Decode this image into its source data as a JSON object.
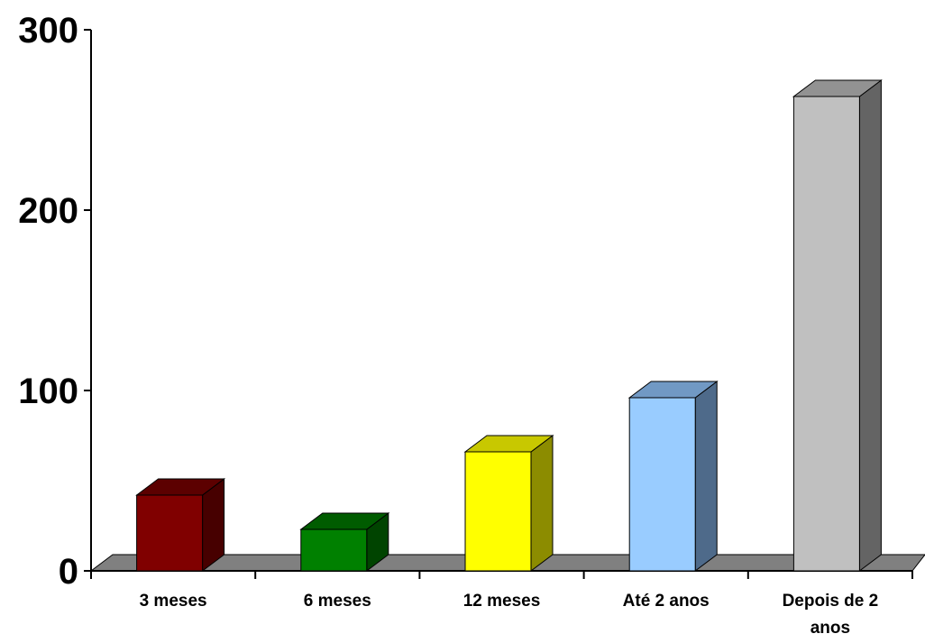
{
  "chart_data": {
    "type": "bar",
    "style": "3d",
    "title": "",
    "xlabel": "",
    "ylabel": "",
    "categories": [
      "3 meses",
      "6 meses",
      "12 meses",
      "Até  2 anos",
      "Depois de 2 anos"
    ],
    "category_lines": [
      [
        "3 meses"
      ],
      [
        "6 meses"
      ],
      [
        "12 meses"
      ],
      [
        "Até  2 anos"
      ],
      [
        "Depois de 2",
        "anos"
      ]
    ],
    "values": [
      42,
      23,
      66,
      96,
      263
    ],
    "ylim": [
      0,
      300
    ],
    "yticks": [
      "0",
      "100",
      "200",
      "300"
    ],
    "grid": false,
    "legend": "none",
    "colors": {
      "bars": [
        {
          "front": "#800000",
          "top": "#5c0000",
          "side": "#470000"
        },
        {
          "front": "#008000",
          "top": "#005c00",
          "side": "#004400"
        },
        {
          "front": "#ffff00",
          "top": "#c8c800",
          "side": "#8c8c00"
        },
        {
          "front": "#99ccff",
          "top": "#7199c4",
          "side": "#4e6a8a"
        },
        {
          "front": "#c0c0c0",
          "top": "#929292",
          "side": "#646464"
        }
      ],
      "floor": "#808080",
      "axis": "#000000"
    }
  }
}
